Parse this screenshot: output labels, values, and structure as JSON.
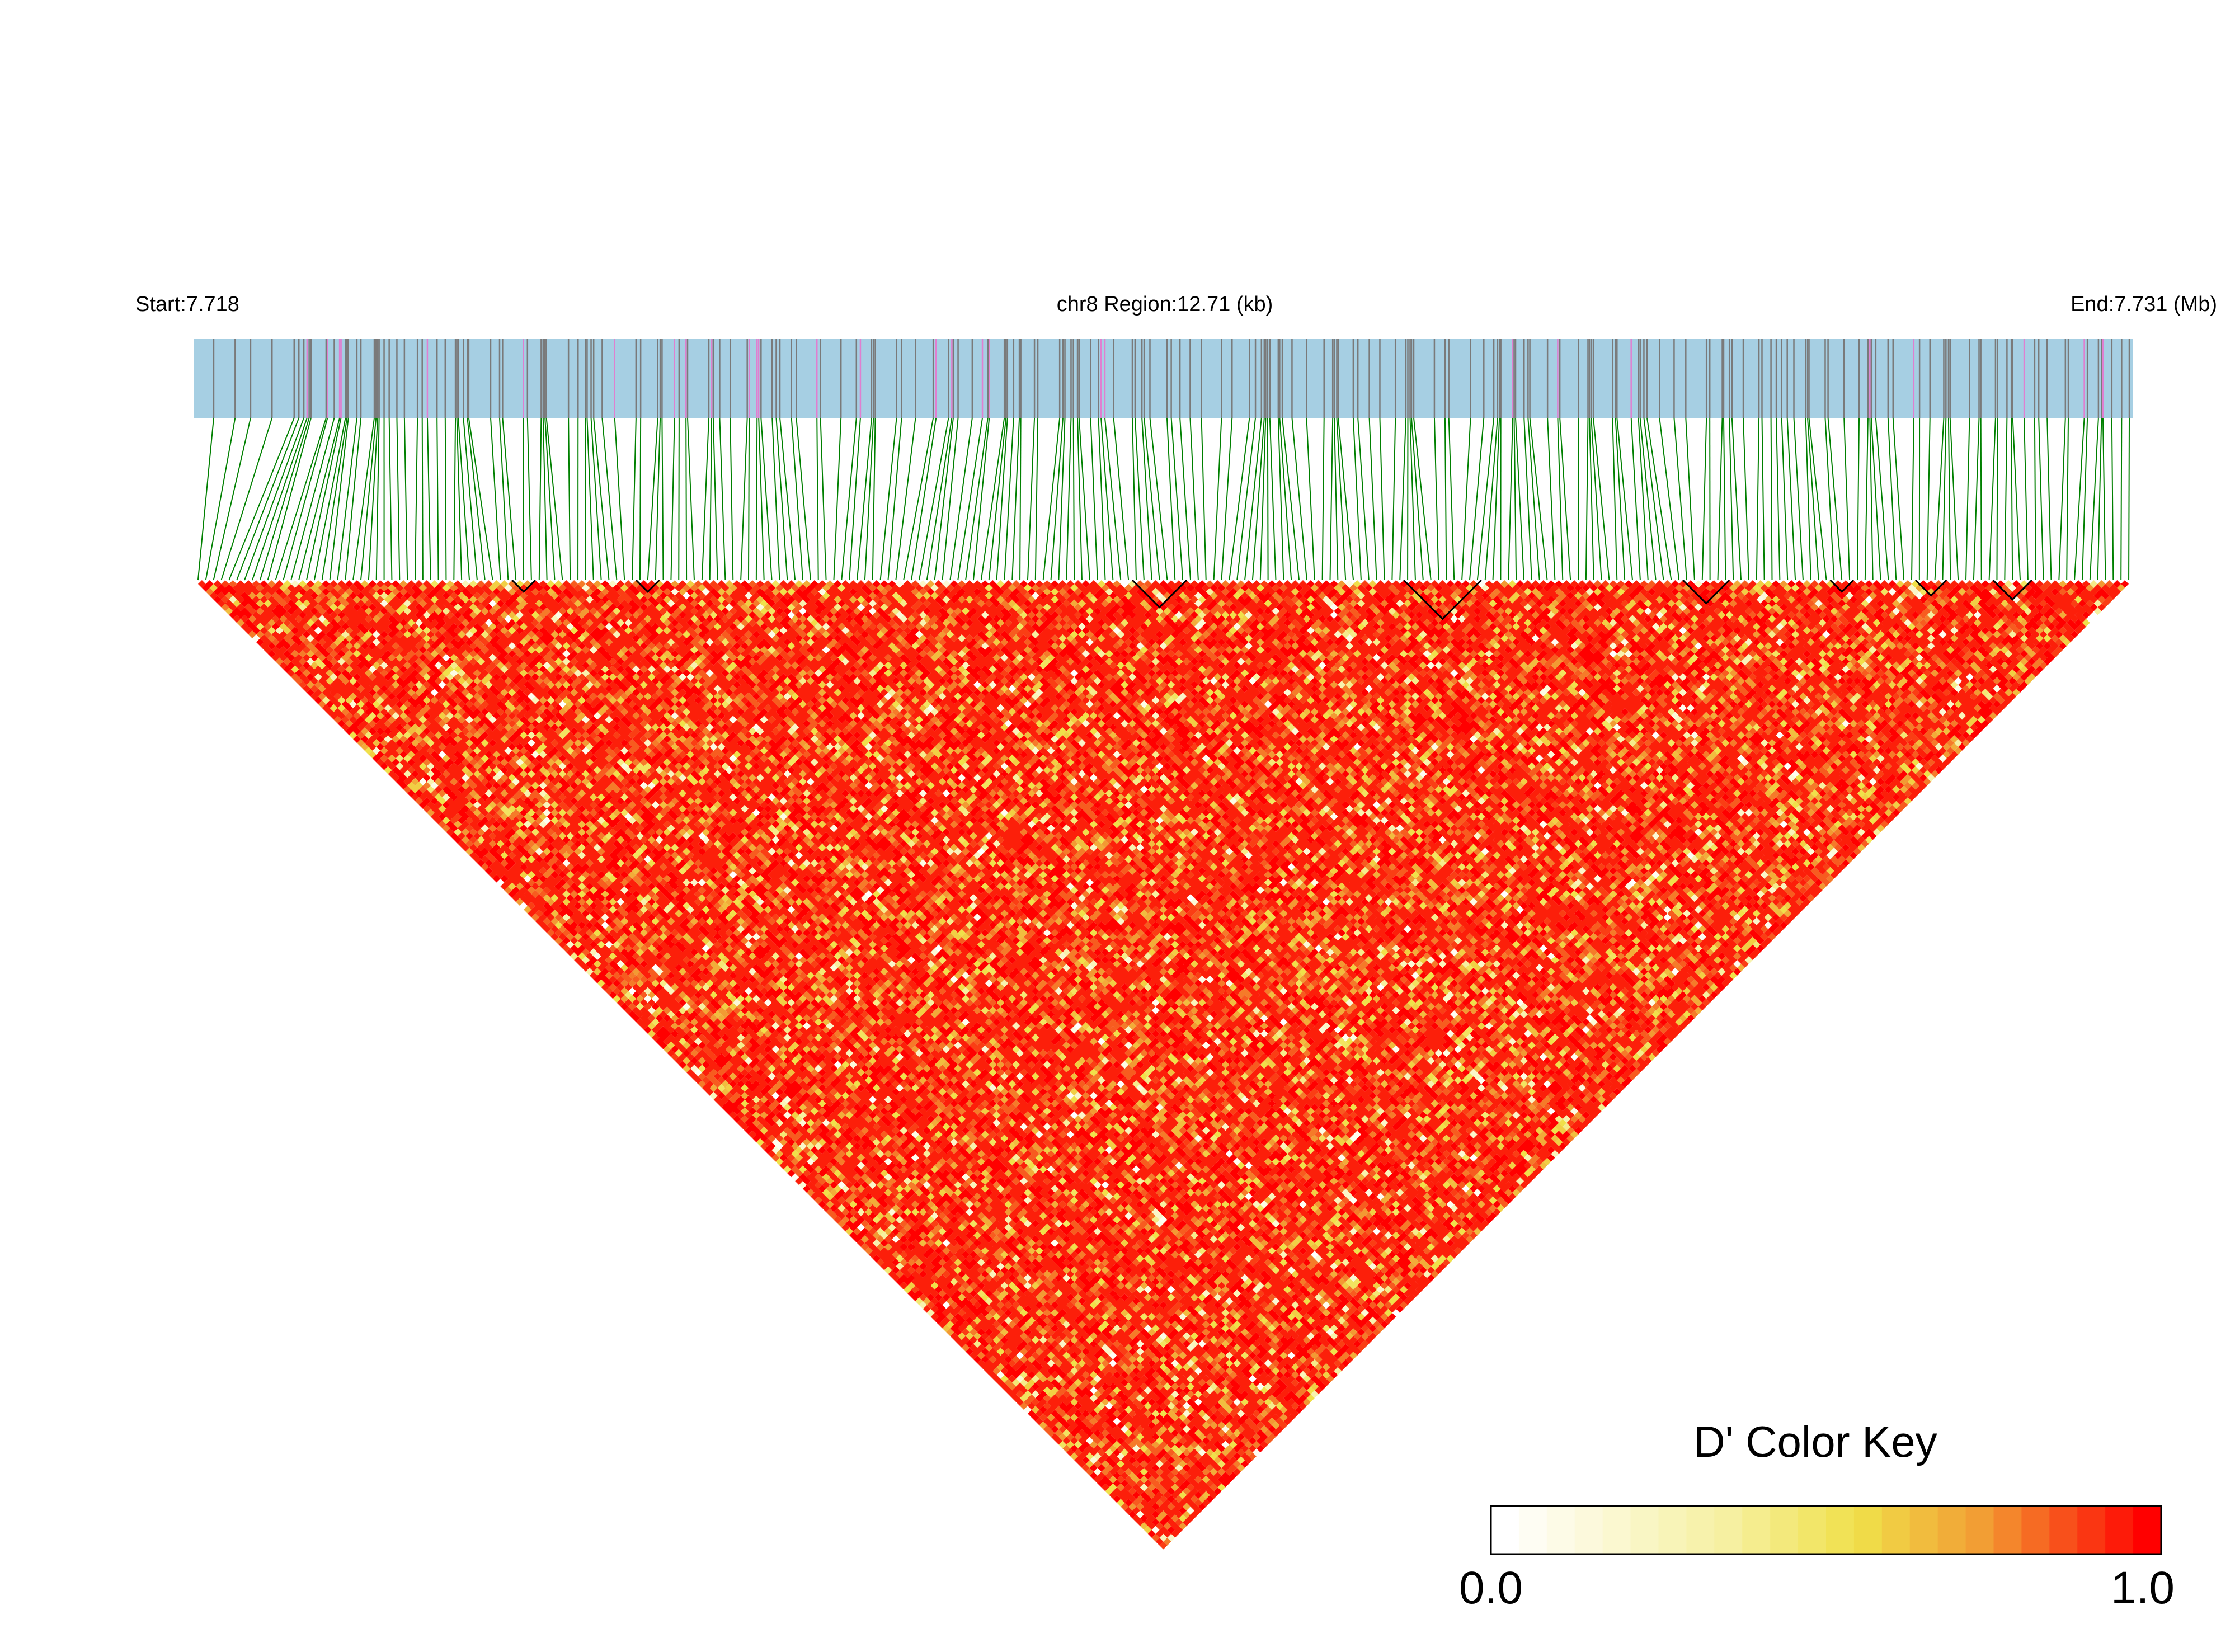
{
  "chart_data": {
    "type": "heatmap",
    "chart_style": "LD block triangle heatmap",
    "header": {
      "start_label": "Start:7.718",
      "region_label": "chr8 Region:12.71 (kb)",
      "end_label": "End:7.731 (Mb)"
    },
    "region": {
      "chromosome": "chr8",
      "start_mb": 7.718,
      "end_mb": 7.731,
      "length_kb": 12.71
    },
    "snp_count": 250,
    "color_key": {
      "title": "D' Color Key",
      "min_label": "0.0",
      "max_label": "1.0",
      "range": [
        0.0,
        1.0
      ],
      "colors": [
        "#ffffff",
        "#f3e85a",
        "#f5a033",
        "#ff0000"
      ]
    },
    "colors": {
      "track_background": "#a6cfe3",
      "snp_tick": "#7a7a7a",
      "snp_tick_highlight": "#e07fd0",
      "connector_line": "#008000",
      "block_outline": "#000000"
    },
    "value_distribution": "predominantly high D' (mostly red, ~0.85-1.0) with scattered lower values (yellow/white)"
  }
}
